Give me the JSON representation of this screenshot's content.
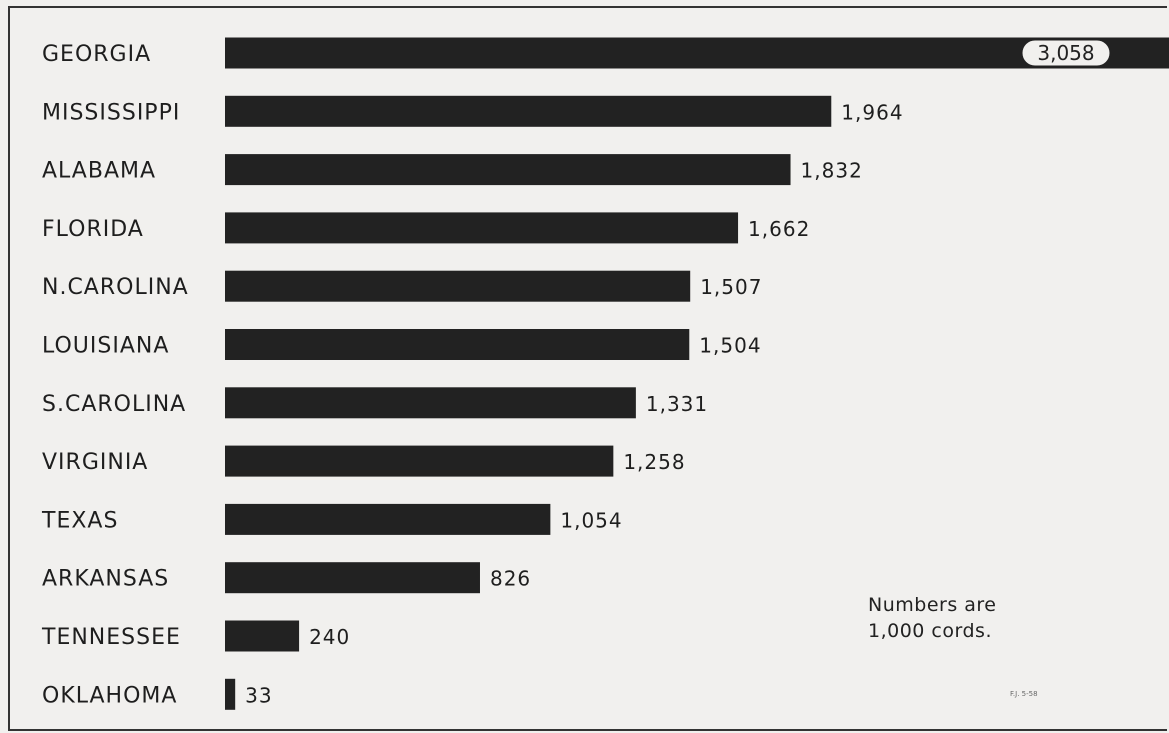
{
  "chart_data": {
    "type": "bar",
    "orientation": "horizontal",
    "categories": [
      "GEORGIA",
      "MISSISSIPPI",
      "ALABAMA",
      "FLORIDA",
      "N.CAROLINA",
      "LOUISIANA",
      "S.CAROLINA",
      "VIRGINIA",
      "TEXAS",
      "ARKANSAS",
      "TENNESSEE",
      "OKLAHOMA"
    ],
    "values": [
      3058,
      1964,
      1832,
      1662,
      1507,
      1504,
      1331,
      1258,
      1054,
      826,
      240,
      33
    ],
    "value_labels": [
      "3,058",
      "1,964",
      "1,832",
      "1,662",
      "1,507",
      "1,504",
      "1,331",
      "1,258",
      "1,054",
      "826",
      "240",
      "33"
    ],
    "title": "",
    "xlabel": "",
    "ylabel": "",
    "grid": false,
    "bar_color": "#222222"
  },
  "note": {
    "line1": "Numbers are",
    "line2": "1,000 cords."
  },
  "corner_mark": "F.J. 5-58"
}
